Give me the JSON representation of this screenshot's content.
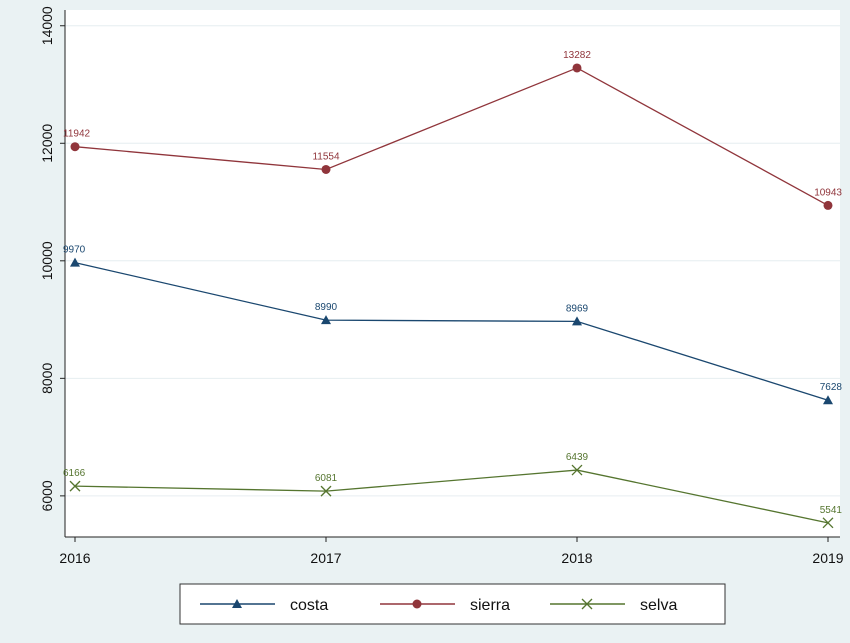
{
  "chart_data": {
    "type": "line",
    "x": [
      2016,
      2017,
      2018,
      2019
    ],
    "xticks": [
      "2016",
      "2017",
      "2018",
      "2019"
    ],
    "yticks": [
      "6000",
      "8000",
      "10000",
      "12000",
      "14000"
    ],
    "ytick_values": [
      6000,
      8000,
      10000,
      12000,
      14000
    ],
    "ylim": [
      5300,
      14200
    ],
    "grid": true,
    "legend_position": "bottom",
    "series": [
      {
        "name": "costa",
        "values": [
          9970,
          8990,
          8969,
          7628
        ],
        "labels": [
          "9970",
          "8990",
          "8969",
          "7628"
        ],
        "color": "#1a476f",
        "marker": "triangle"
      },
      {
        "name": "sierra",
        "values": [
          11942,
          11554,
          13282,
          10943
        ],
        "labels": [
          "11942",
          "11554",
          "13282",
          "10943"
        ],
        "color": "#90353b",
        "marker": "circle"
      },
      {
        "name": "selva",
        "values": [
          6166,
          6081,
          6439,
          5541
        ],
        "labels": [
          "6166",
          "6081",
          "6439",
          "5541"
        ],
        "color": "#55752f",
        "marker": "x"
      }
    ]
  }
}
